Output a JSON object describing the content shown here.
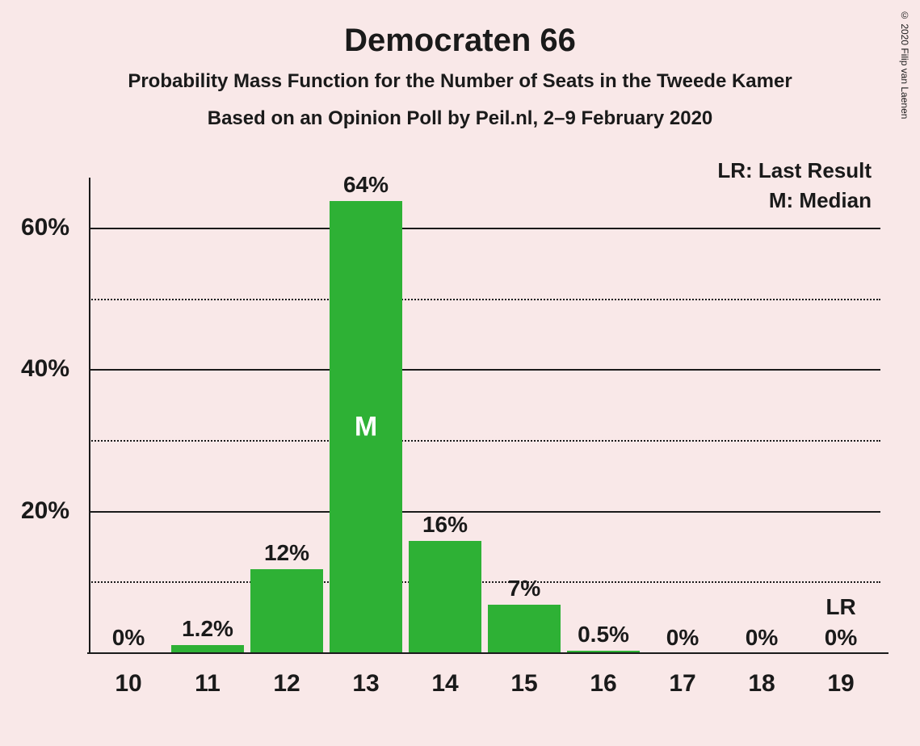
{
  "title": "Democraten 66",
  "subtitle1": "Probability Mass Function for the Number of Seats in the Tweede Kamer",
  "subtitle2": "Based on an Opinion Poll by Peil.nl, 2–9 February 2020",
  "copyright": "© 2020 Filip van Laenen",
  "legend": {
    "lr": "LR: Last Result",
    "m": "M: Median"
  },
  "chart": {
    "type": "bar",
    "background_color": "#f9e8e8",
    "bar_color": "#2eb135",
    "text_color": "#1a1a1a",
    "axis_color": "#1a1a1a",
    "grid_color": "#1a1a1a",
    "median_text_color": "#ffffff",
    "title_fontsize": 40,
    "subtitle_fontsize": 24,
    "label_fontsize": 28,
    "axis_fontsize": 30,
    "ylim": [
      0,
      65
    ],
    "ytick_major": [
      20,
      40,
      60
    ],
    "ytick_minor": [
      10,
      30,
      50
    ],
    "ytick_labels": [
      "20%",
      "40%",
      "60%"
    ],
    "categories": [
      "10",
      "11",
      "12",
      "13",
      "14",
      "15",
      "16",
      "17",
      "18",
      "19"
    ],
    "values": [
      0,
      1.2,
      12,
      64,
      16,
      7,
      0.5,
      0,
      0,
      0
    ],
    "value_labels": [
      "0%",
      "1.2%",
      "12%",
      "64%",
      "16%",
      "7%",
      "0.5%",
      "0%",
      "0%",
      "0%"
    ],
    "median_index": 3,
    "median_marker": "M",
    "lr_index": 9,
    "lr_marker": "LR",
    "bar_width_ratio": 0.92
  }
}
